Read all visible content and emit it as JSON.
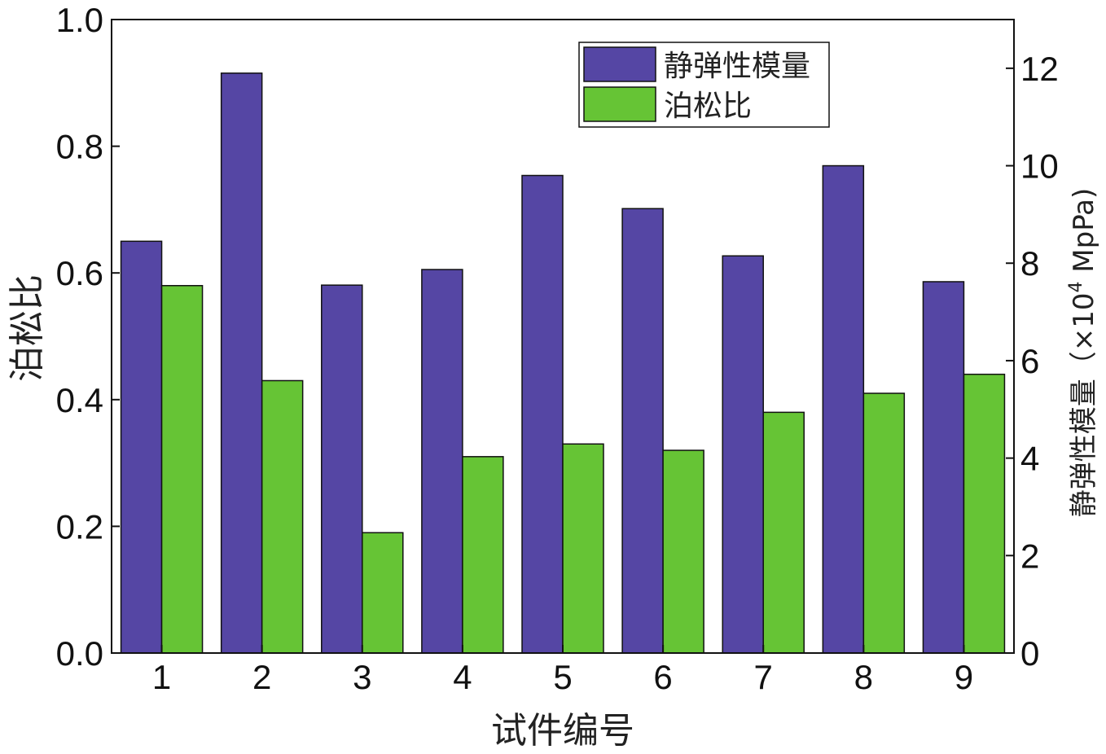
{
  "chart_data": {
    "type": "bar",
    "categories": [
      "1",
      "2",
      "3",
      "4",
      "5",
      "6",
      "7",
      "8",
      "9"
    ],
    "series": [
      {
        "name": "静弹性模量",
        "axis": "right",
        "color": "#5546a4",
        "values": [
          8.45,
          11.9,
          7.55,
          7.87,
          9.8,
          9.12,
          8.15,
          10.0,
          7.62
        ]
      },
      {
        "name": "泊松比",
        "axis": "left",
        "color": "#66c435",
        "values": [
          0.58,
          0.43,
          0.19,
          0.31,
          0.33,
          0.32,
          0.38,
          0.41,
          0.44
        ]
      }
    ],
    "xlabel": "试件编号",
    "ylabel_left": "泊松比",
    "ylabel_right": "静弹性模量（×10",
    "ylabel_right_sup": "4",
    "ylabel_right_unit": " MpPa)",
    "ylim_left": [
      0,
      1.0
    ],
    "ylim_right": [
      0,
      13
    ],
    "yticks_left": [
      "0.0",
      "0.2",
      "0.4",
      "0.6",
      "0.8",
      "1.0"
    ],
    "yticks_right": [
      "0",
      "2",
      "4",
      "6",
      "8",
      "10",
      "12"
    ],
    "legend_position": "top-right",
    "grid": false
  }
}
